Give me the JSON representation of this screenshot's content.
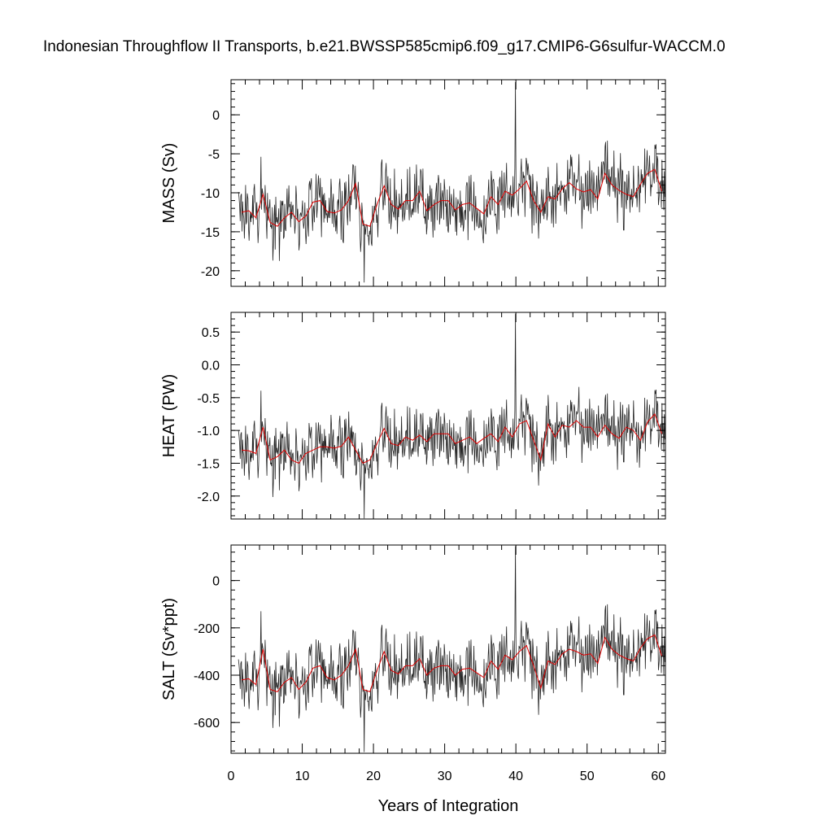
{
  "title": "Indonesian Throughflow II Transports, b.e21.BWSSP585cmip6.f09_g17.CMIP6-G6sulfur-WACCM.0",
  "colors": {
    "raw_series": "#000000",
    "smoothed_series": "#e00000",
    "background": "#ffffff"
  },
  "chart_data": [
    {
      "type": "line",
      "ylabel": "MASS (Sv)",
      "xlabel": "",
      "xlim": [
        0,
        61
      ],
      "ylim": [
        -22,
        4.5
      ],
      "xticks": [
        0,
        10,
        20,
        30,
        40,
        50,
        60
      ],
      "yticks": [
        -20,
        -15,
        -10,
        -5,
        0
      ],
      "ytick_labels": [
        "-20",
        "-15",
        "-10",
        "-5",
        "0"
      ],
      "grid": false,
      "series": [
        {
          "role": "monthly",
          "x_start": 1.04,
          "x_step": 0.0833,
          "count": 720,
          "mean": -11.5,
          "amplitude": 4.5,
          "min": -21.5,
          "max": 4.2
        },
        {
          "role": "annual-mean",
          "x": [
            1.5,
            2.5,
            3.5,
            4.5,
            5.5,
            6.5,
            7.5,
            8.5,
            9.5,
            10.5,
            11.5,
            12.5,
            13.5,
            14.5,
            15.5,
            16.5,
            17.5,
            18.5,
            19.5,
            20.5,
            21.5,
            22.5,
            23.5,
            24.5,
            25.5,
            26.5,
            27.5,
            28.5,
            29.5,
            30.5,
            31.5,
            32.5,
            33.5,
            34.5,
            35.5,
            36.5,
            37.5,
            38.5,
            39.5,
            40.5,
            41.5,
            42.5,
            43.5,
            44.5,
            45.5,
            46.5,
            47.5,
            48.5,
            49.5,
            50.5,
            51.5,
            52.5,
            53.5,
            54.5,
            55.5,
            56.5,
            57.5,
            58.5,
            59.5,
            60.5
          ],
          "y": [
            -12.5,
            -12.3,
            -13.2,
            -10.2,
            -13.8,
            -14.3,
            -13.2,
            -12.5,
            -13.7,
            -13.0,
            -11.2,
            -11.0,
            -12.4,
            -12.6,
            -12.2,
            -11.0,
            -8.8,
            -14.0,
            -14.3,
            -11.5,
            -9.1,
            -11.5,
            -12.1,
            -11.0,
            -11.0,
            -9.8,
            -12.3,
            -11.5,
            -11.0,
            -11.0,
            -12.2,
            -11.5,
            -11.3,
            -12.0,
            -12.7,
            -10.5,
            -11.5,
            -9.8,
            -10.3,
            -9.5,
            -8.5,
            -11.0,
            -12.5,
            -10.5,
            -10.8,
            -9.5,
            -8.7,
            -9.5,
            -9.9,
            -9.6,
            -10.8,
            -7.5,
            -9.0,
            -9.7,
            -10.2,
            -10.5,
            -8.9,
            -7.5,
            -7.0,
            -9.8
          ]
        }
      ]
    },
    {
      "type": "line",
      "ylabel": "HEAT (PW)",
      "xlabel": "",
      "xlim": [
        0,
        61
      ],
      "ylim": [
        -2.35,
        0.8
      ],
      "xticks": [
        0,
        10,
        20,
        30,
        40,
        50,
        60
      ],
      "yticks": [
        -2.0,
        -1.5,
        -1.0,
        -0.5,
        0.0,
        0.5
      ],
      "ytick_labels": [
        "-2.0",
        "-1.5",
        "-1.0",
        "-0.5",
        "0.0",
        "0.5"
      ],
      "grid": false,
      "series": [
        {
          "role": "monthly",
          "x_start": 1.04,
          "x_step": 0.0833,
          "count": 720,
          "mean": -1.15,
          "amplitude": 0.52,
          "min": -2.34,
          "max": 0.78
        },
        {
          "role": "annual-mean",
          "x": [
            1.5,
            2.5,
            3.5,
            4.5,
            5.5,
            6.5,
            7.5,
            8.5,
            9.5,
            10.5,
            11.5,
            12.5,
            13.5,
            14.5,
            15.5,
            16.5,
            17.5,
            18.5,
            19.5,
            20.5,
            21.5,
            22.5,
            23.5,
            24.5,
            25.5,
            26.5,
            27.5,
            28.5,
            29.5,
            30.5,
            31.5,
            32.5,
            33.5,
            34.5,
            35.5,
            36.5,
            37.5,
            38.5,
            39.5,
            40.5,
            41.5,
            42.5,
            43.5,
            44.5,
            45.5,
            46.5,
            47.5,
            48.5,
            49.5,
            50.5,
            51.5,
            52.5,
            53.5,
            54.5,
            55.5,
            56.5,
            57.5,
            58.5,
            59.5,
            60.5
          ],
          "y": [
            -1.3,
            -1.31,
            -1.35,
            -0.95,
            -1.45,
            -1.4,
            -1.3,
            -1.45,
            -1.5,
            -1.35,
            -1.3,
            -1.25,
            -1.25,
            -1.27,
            -1.24,
            -1.1,
            -1.3,
            -1.5,
            -1.45,
            -1.2,
            -0.97,
            -1.2,
            -1.23,
            -1.1,
            -1.15,
            -1.07,
            -1.17,
            -1.05,
            -1.05,
            -1.05,
            -1.2,
            -1.15,
            -1.1,
            -1.2,
            -1.12,
            -1.05,
            -1.17,
            -0.95,
            -1.1,
            -0.9,
            -0.85,
            -1.15,
            -1.45,
            -0.9,
            -1.1,
            -0.92,
            -0.95,
            -0.85,
            -0.95,
            -0.95,
            -1.1,
            -0.92,
            -1.05,
            -1.12,
            -0.95,
            -1.0,
            -1.15,
            -0.87,
            -0.75,
            -1.05
          ]
        }
      ]
    },
    {
      "type": "line",
      "ylabel": "SALT (Sv*ppt)",
      "xlabel": "Years of Integration",
      "xlim": [
        0,
        61
      ],
      "ylim": [
        -730,
        150
      ],
      "xticks": [
        0,
        10,
        20,
        30,
        40,
        50,
        60
      ],
      "xtick_labels": [
        "0",
        "10",
        "20",
        "30",
        "40",
        "50",
        "60"
      ],
      "yticks": [
        -600,
        -400,
        -200,
        0
      ],
      "ytick_labels": [
        "-600",
        "-400",
        "-200",
        "0"
      ],
      "grid": false,
      "series": [
        {
          "role": "monthly",
          "x_start": 1.04,
          "x_step": 0.0833,
          "count": 720,
          "mean": -390,
          "amplitude": 150,
          "min": -725,
          "max": 145
        },
        {
          "role": "annual-mean",
          "x": [
            1.5,
            2.5,
            3.5,
            4.5,
            5.5,
            6.5,
            7.5,
            8.5,
            9.5,
            10.5,
            11.5,
            12.5,
            13.5,
            14.5,
            15.5,
            16.5,
            17.5,
            18.5,
            19.5,
            20.5,
            21.5,
            22.5,
            23.5,
            24.5,
            25.5,
            26.5,
            27.5,
            28.5,
            29.5,
            30.5,
            31.5,
            32.5,
            33.5,
            34.5,
            35.5,
            36.5,
            37.5,
            38.5,
            39.5,
            40.5,
            41.5,
            42.5,
            43.5,
            44.5,
            45.5,
            46.5,
            47.5,
            48.5,
            49.5,
            50.5,
            51.5,
            52.5,
            53.5,
            54.5,
            55.5,
            56.5,
            57.5,
            58.5,
            59.5,
            60.5
          ],
          "y": [
            -420,
            -415,
            -440,
            -290,
            -460,
            -470,
            -430,
            -410,
            -460,
            -430,
            -370,
            -360,
            -410,
            -420,
            -400,
            -360,
            -290,
            -460,
            -470,
            -380,
            -300,
            -380,
            -395,
            -360,
            -360,
            -330,
            -400,
            -370,
            -360,
            -360,
            -400,
            -375,
            -370,
            -390,
            -410,
            -340,
            -375,
            -315,
            -335,
            -300,
            -275,
            -360,
            -455,
            -340,
            -355,
            -310,
            -290,
            -300,
            -315,
            -310,
            -350,
            -240,
            -290,
            -315,
            -330,
            -340,
            -285,
            -245,
            -230,
            -320
          ]
        }
      ]
    }
  ]
}
